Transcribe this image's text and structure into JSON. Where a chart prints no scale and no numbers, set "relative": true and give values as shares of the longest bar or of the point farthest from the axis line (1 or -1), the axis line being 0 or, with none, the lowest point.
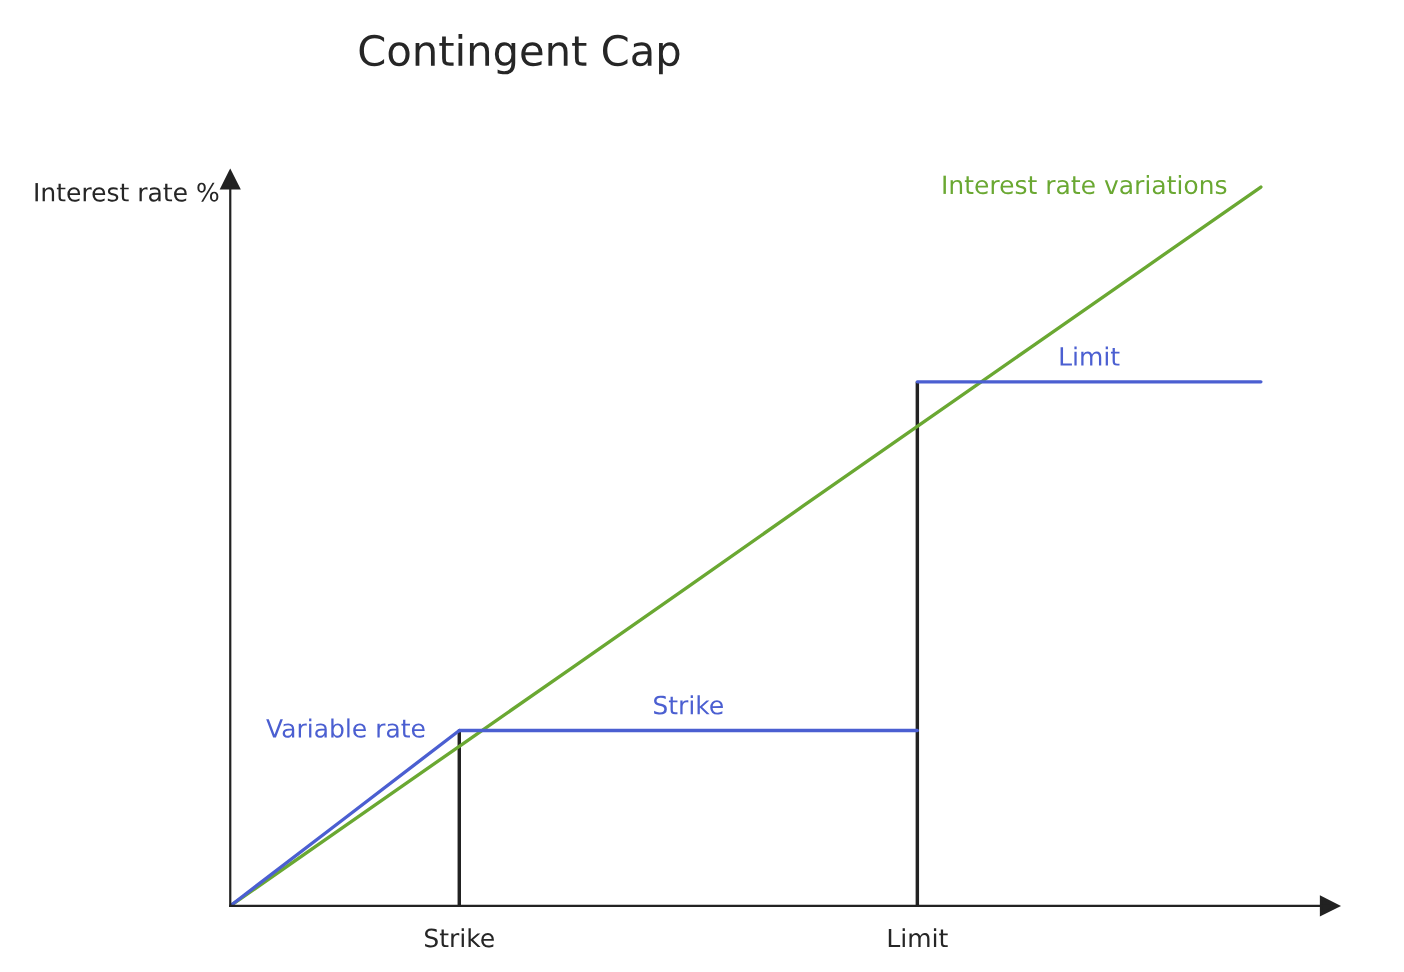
{
  "chart_data": {
    "type": "line",
    "title": "Contingent Cap",
    "ylabel": "Interest rate %",
    "relative": true,
    "categories": [
      null,
      null,
      "Strike",
      null,
      null,
      null,
      "Limit",
      null,
      null,
      null
    ],
    "tick_labels": "x",
    "grid": false,
    "legend": false,
    "marker": "none",
    "line_style": "solid",
    "series": [
      {
        "name": "Interest rate variations",
        "color": "#6aa832",
        "values": [
          0,
          0.111,
          0.222,
          0.333,
          0.444,
          0.556,
          0.667,
          0.778,
          0.889,
          1
        ]
      },
      {
        "name": "Variable rate",
        "color": "#4b5fd1",
        "values": [
          0,
          0.122,
          0.244,
          null,
          null,
          null,
          null,
          null,
          null,
          null
        ]
      },
      {
        "name": "Strike",
        "color": "#4b5fd1",
        "values": [
          null,
          null,
          0.244,
          0.244,
          0.244,
          0.244,
          0.244,
          null,
          null,
          null
        ]
      },
      {
        "name": "Limit",
        "color": "#4b5fd1",
        "values": [
          null,
          null,
          null,
          null,
          null,
          null,
          0.729,
          0.729,
          0.729,
          0.729
        ]
      },
      {
        "type": "bar",
        "color": "#222222",
        "values": [
          null,
          null,
          0.244,
          null,
          null,
          null,
          0.729,
          null,
          null,
          null
        ]
      }
    ]
  }
}
